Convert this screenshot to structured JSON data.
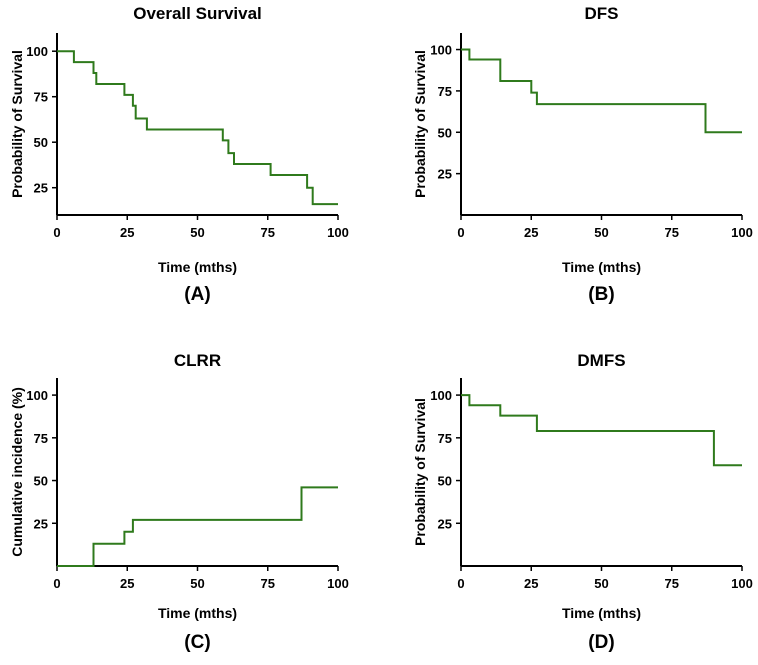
{
  "chart_data": [
    {
      "type": "line",
      "step": true,
      "title": "Overall Survival",
      "xlabel": "Time (mths)",
      "ylabel": "Probability of Survival",
      "panel_label": "(A)",
      "xlim": [
        0,
        100
      ],
      "ylim": [
        10,
        110
      ],
      "xticks": [
        "0",
        "25",
        "50",
        "75",
        "100"
      ],
      "yticks": [
        "25",
        "50",
        "75",
        "100"
      ],
      "color": "#2f7a1c",
      "x": [
        0,
        6,
        6,
        13,
        13,
        14,
        14,
        24,
        24,
        27,
        27,
        28,
        28,
        32,
        32,
        59,
        59,
        61,
        61,
        63,
        63,
        76,
        76,
        89,
        89,
        91,
        91,
        100
      ],
      "y": [
        100,
        100,
        94,
        94,
        88,
        88,
        82,
        82,
        76,
        76,
        70,
        70,
        63,
        63,
        57,
        57,
        51,
        51,
        44,
        44,
        38,
        38,
        32,
        32,
        25,
        25,
        16,
        16
      ]
    },
    {
      "type": "line",
      "step": true,
      "title": "DFS",
      "xlabel": "Time (mths)",
      "ylabel": "Probability of Survival",
      "panel_label": "(B)",
      "xlim": [
        0,
        100
      ],
      "ylim": [
        0,
        110
      ],
      "xticks": [
        "0",
        "25",
        "50",
        "75",
        "100"
      ],
      "yticks": [
        "25",
        "50",
        "75",
        "100"
      ],
      "color": "#2f7a1c",
      "x": [
        0,
        3,
        3,
        14,
        14,
        25,
        25,
        27,
        27,
        87,
        87,
        100
      ],
      "y": [
        100,
        100,
        94,
        94,
        81,
        81,
        74,
        74,
        67,
        67,
        50,
        50
      ]
    },
    {
      "type": "line",
      "step": true,
      "title": "CLRR",
      "xlabel": "Time (mths)",
      "ylabel": "Cumulative incidence (%)",
      "panel_label": "(C)",
      "xlim": [
        0,
        100
      ],
      "ylim": [
        0,
        110
      ],
      "xticks": [
        "0",
        "25",
        "50",
        "75",
        "100"
      ],
      "yticks": [
        "25",
        "50",
        "75",
        "100"
      ],
      "color": "#2f7a1c",
      "x": [
        0,
        13,
        13,
        24,
        24,
        27,
        27,
        87,
        87,
        100
      ],
      "y": [
        0,
        0,
        13,
        13,
        20,
        20,
        27,
        27,
        46,
        46
      ]
    },
    {
      "type": "line",
      "step": true,
      "title": "DMFS",
      "xlabel": "Time (mths)",
      "ylabel": "Probability of Survival",
      "panel_label": "(D)",
      "xlim": [
        0,
        100
      ],
      "ylim": [
        0,
        110
      ],
      "xticks": [
        "0",
        "25",
        "50",
        "75",
        "100"
      ],
      "yticks": [
        "25",
        "50",
        "75",
        "100"
      ],
      "color": "#2f7a1c",
      "x": [
        0,
        3,
        3,
        14,
        14,
        27,
        27,
        90,
        90,
        100
      ],
      "y": [
        100,
        100,
        94,
        94,
        88,
        88,
        79,
        79,
        59,
        59
      ]
    }
  ]
}
